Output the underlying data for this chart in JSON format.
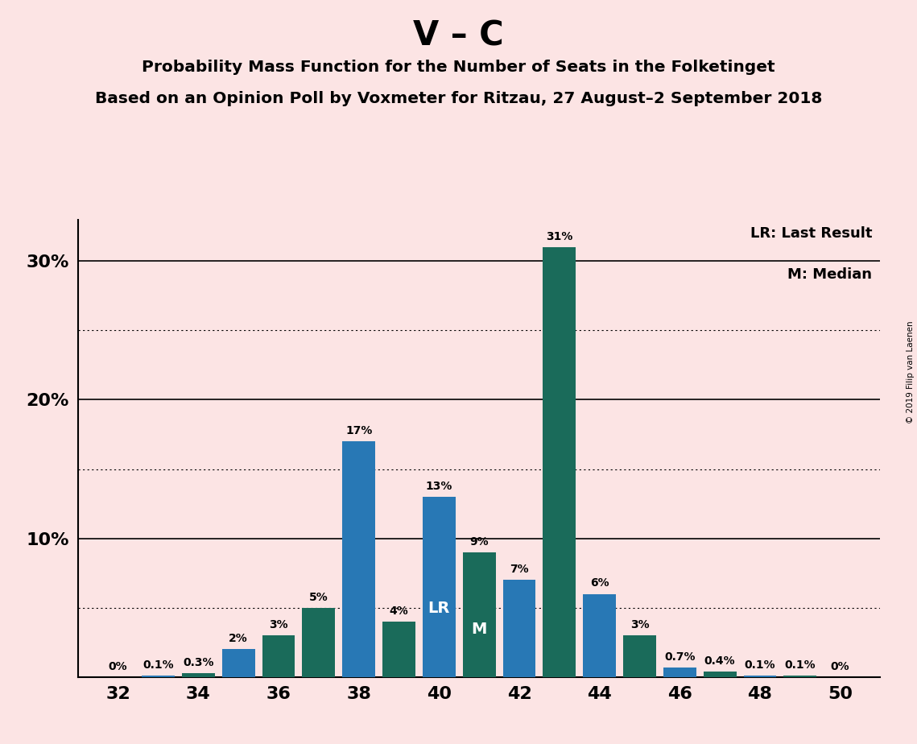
{
  "title_main": "V – C",
  "title_sub1": "Probability Mass Function for the Number of Seats in the Folketinget",
  "title_sub2": "Based on an Opinion Poll by Voxmeter for Ritzau, 27 August–2 September 2018",
  "copyright_text": "© 2019 Filip van Laenen",
  "legend_lr": "LR: Last Result",
  "legend_m": "M: Median",
  "seats": [
    32,
    33,
    34,
    35,
    36,
    37,
    38,
    39,
    40,
    41,
    42,
    43,
    44,
    45,
    46,
    47,
    48,
    49,
    50
  ],
  "values": [
    0.0,
    0.1,
    0.3,
    2.0,
    3.0,
    5.0,
    17.0,
    4.0,
    13.0,
    9.0,
    7.0,
    31.0,
    6.0,
    3.0,
    0.7,
    0.4,
    0.1,
    0.1,
    0.0
  ],
  "labels": [
    "0%",
    "0.1%",
    "0.3%",
    "2%",
    "3%",
    "5%",
    "17%",
    "4%",
    "13%",
    "9%",
    "7%",
    "31%",
    "6%",
    "3%",
    "0.7%",
    "0.4%",
    "0.1%",
    "0.1%",
    "0%"
  ],
  "colors": [
    "#1a6b5a",
    "#2878b5",
    "#1a6b5a",
    "#2878b5",
    "#1a6b5a",
    "#1a6b5a",
    "#2878b5",
    "#1a6b5a",
    "#2878b5",
    "#1a6b5a",
    "#2878b5",
    "#1a6b5a",
    "#2878b5",
    "#1a6b5a",
    "#2878b5",
    "#1a6b5a",
    "#2878b5",
    "#1a6b5a",
    "#1a6b5a"
  ],
  "lr_seat": 40,
  "median_seat": 41,
  "lr_label": "LR",
  "median_label": "M",
  "background_color": "#fce4e4",
  "ylim_max": 33,
  "xticks": [
    32,
    34,
    36,
    38,
    40,
    42,
    44,
    46,
    48,
    50
  ],
  "ytick_positions": [
    10,
    20,
    30
  ],
  "ytick_labels": [
    "10%",
    "20%",
    "30%"
  ],
  "solid_lines": [
    10,
    20,
    30
  ],
  "dotted_lines": [
    5,
    15,
    25
  ],
  "bar_width": 0.82
}
